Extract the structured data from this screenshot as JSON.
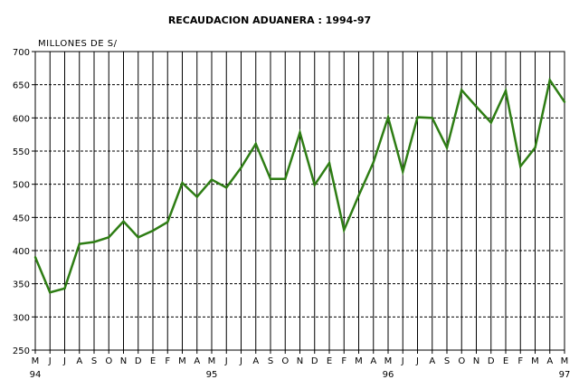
{
  "chart_data": {
    "type": "line",
    "title": "RECAUDACION ADUANERA : 1994-97",
    "unit_label": "MILLONES DE S/",
    "xlabel": "",
    "ylabel": "",
    "ylim": [
      250,
      700
    ],
    "y_ticks": [
      250,
      300,
      350,
      400,
      450,
      500,
      550,
      600,
      650,
      700
    ],
    "categories": [
      "M",
      "J",
      "J",
      "A",
      "S",
      "O",
      "N",
      "D",
      "E",
      "F",
      "M",
      "A",
      "M",
      "J",
      "J",
      "A",
      "S",
      "O",
      "N",
      "D",
      "E",
      "F",
      "M",
      "A",
      "M",
      "J",
      "J",
      "A",
      "S",
      "O",
      "N",
      "D",
      "E",
      "F",
      "M",
      "A",
      "M"
    ],
    "year_labels": [
      {
        "index": 0,
        "label": "94"
      },
      {
        "index": 12,
        "label": "95"
      },
      {
        "index": 24,
        "label": "96"
      },
      {
        "index": 36,
        "label": "97"
      }
    ],
    "grid": true,
    "legend": "none",
    "series": [
      {
        "color": "#2e7d14",
        "values": [
          390,
          337,
          343,
          410,
          413,
          420,
          444,
          420,
          430,
          443,
          502,
          481,
          507,
          495,
          525,
          561,
          508,
          508,
          578,
          499,
          532,
          431,
          483,
          533,
          601,
          519,
          601,
          600,
          555,
          642,
          617,
          593,
          641,
          527,
          555,
          657,
          624
        ]
      }
    ]
  }
}
